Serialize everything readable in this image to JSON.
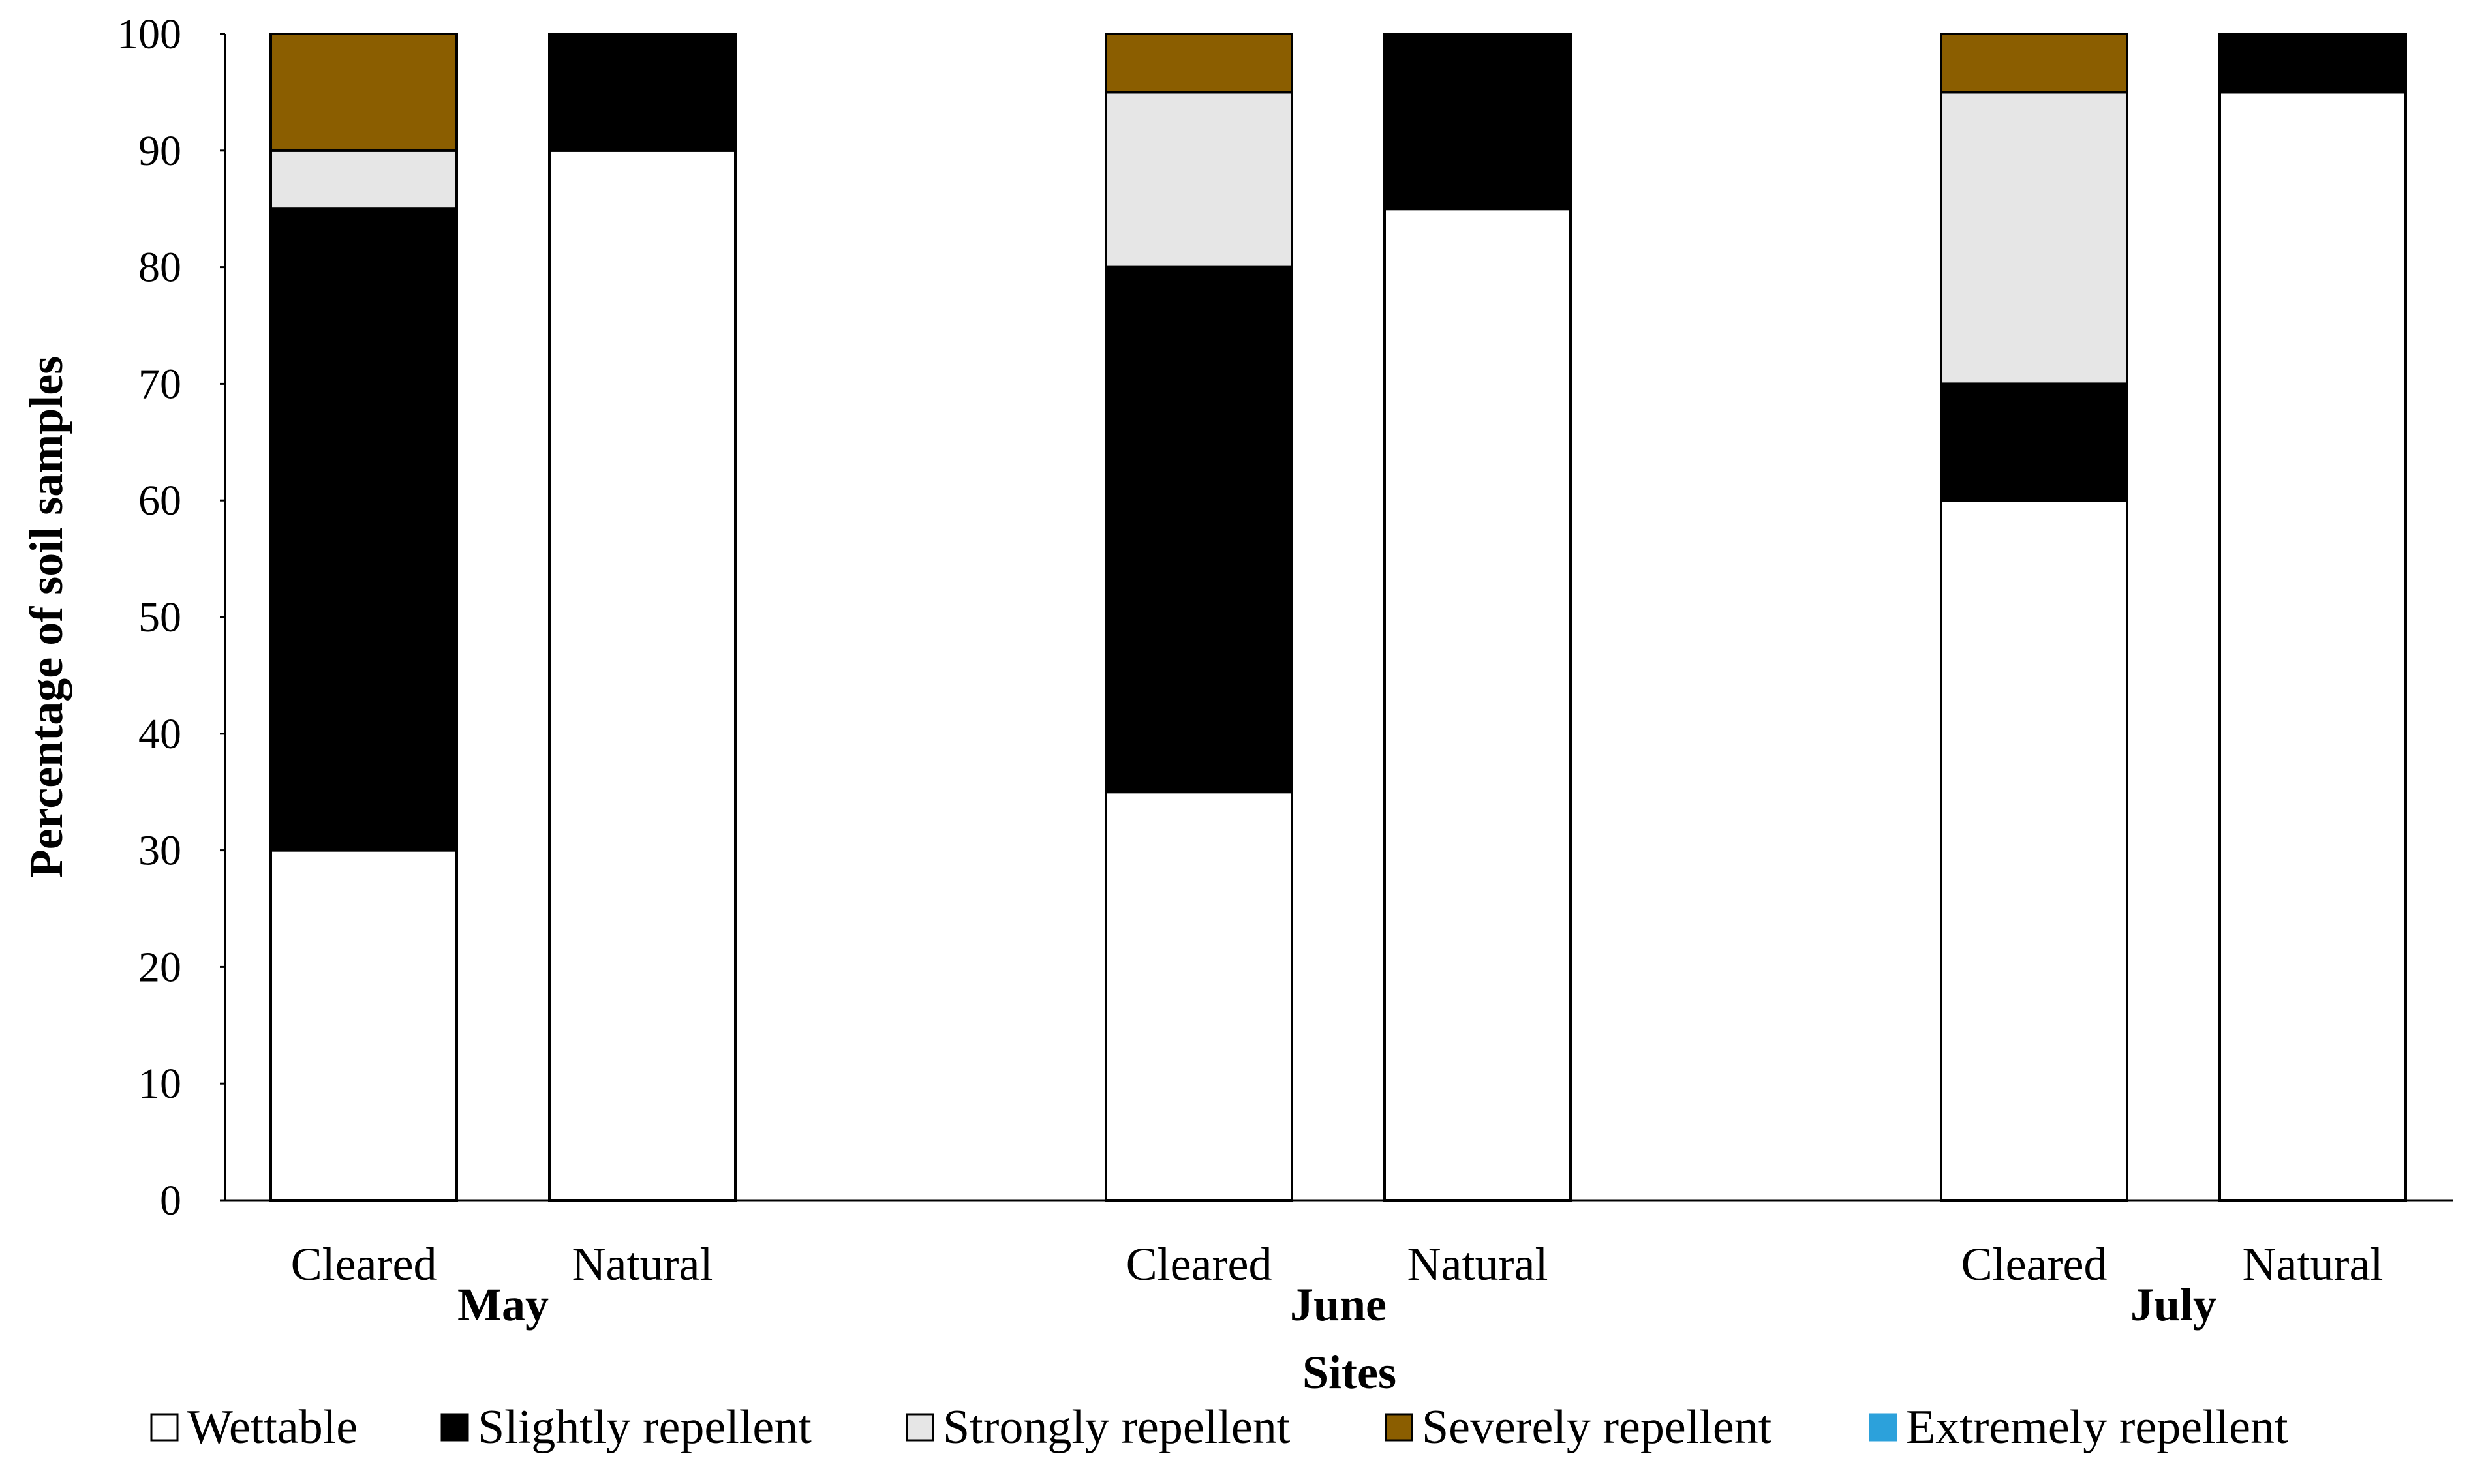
{
  "chart_data": {
    "type": "bar",
    "stacked": true,
    "title": "",
    "xlabel": "Sites",
    "ylabel": "Percentage of soil samples",
    "ylim": [
      0,
      100
    ],
    "yticks": [
      0,
      10,
      20,
      30,
      40,
      50,
      60,
      70,
      80,
      90,
      100
    ],
    "grid": false,
    "legend_position": "bottom",
    "groups": [
      {
        "label": "May",
        "bars": [
          {
            "label": "Cleared",
            "values": [
              30,
              55,
              5,
              10,
              0
            ]
          },
          {
            "label": "Natural",
            "values": [
              90,
              10,
              0,
              0,
              0
            ]
          }
        ]
      },
      {
        "label": "June",
        "bars": [
          {
            "label": "Cleared",
            "values": [
              35,
              45,
              15,
              5,
              0
            ]
          },
          {
            "label": "Natural",
            "values": [
              85,
              15,
              0,
              0,
              0
            ]
          }
        ]
      },
      {
        "label": "July",
        "bars": [
          {
            "label": "Cleared",
            "values": [
              60,
              10,
              25,
              5,
              0
            ]
          },
          {
            "label": "Natural",
            "values": [
              95,
              5,
              0,
              0,
              0
            ]
          }
        ]
      }
    ],
    "series": [
      {
        "name": "Wettable",
        "color": "#ffffff"
      },
      {
        "name": "Slightly repellent",
        "color": "#000000"
      },
      {
        "name": "Strongly repellent",
        "color": "#e6e6e6"
      },
      {
        "name": "Severely repellent",
        "color": "#8b5e00"
      },
      {
        "name": "Extremely repellent",
        "color": "#2ca1db"
      }
    ]
  }
}
